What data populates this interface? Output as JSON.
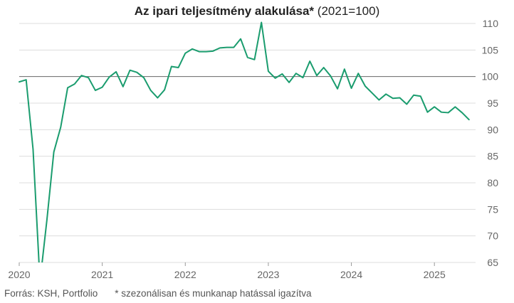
{
  "chart_data": {
    "type": "line",
    "title": "Az ipari teljesítmény alakulása*",
    "title_suffix": "(2021=100)",
    "xlabel": "",
    "ylabel": "",
    "ylim": [
      65,
      110
    ],
    "yticks": [
      110,
      105,
      100,
      95,
      90,
      85,
      80,
      75,
      70,
      65
    ],
    "xticks": [
      "2020",
      "2021",
      "2022",
      "2023",
      "2024",
      "2025"
    ],
    "x_start": "2020-01",
    "reference_line": 100,
    "grid": true,
    "y_axis_position": "right",
    "colors": {
      "line": "#1a9c6e",
      "grid": "#dddddd",
      "reference": "#666666"
    },
    "series": [
      {
        "values": [
          99.0,
          99.4,
          86.3,
          61.4,
          73.0,
          85.8,
          90.5,
          97.9,
          98.6,
          100.2,
          99.8,
          97.4,
          98.0,
          99.9,
          100.9,
          98.1,
          101.2,
          100.8,
          99.8,
          97.4,
          96.0,
          97.5,
          101.9,
          101.7,
          104.4,
          105.2,
          104.7,
          104.7,
          104.8,
          105.4,
          105.5,
          105.5,
          107.1,
          103.6,
          103.2,
          110.2,
          101.0,
          99.7,
          100.5,
          98.9,
          100.6,
          99.8,
          102.9,
          100.2,
          101.7,
          100.1,
          97.7,
          101.4,
          97.8,
          100.6,
          98.2,
          96.9,
          95.6,
          96.7,
          95.9,
          96.0,
          94.8,
          96.5,
          96.3,
          93.3,
          94.3,
          93.3,
          93.2,
          94.3,
          93.2,
          91.9
        ]
      }
    ]
  },
  "footer": {
    "source": "Forrás: KSH, Portfolio",
    "note": "* szezonálisan és munkanap hatással igazítva"
  }
}
